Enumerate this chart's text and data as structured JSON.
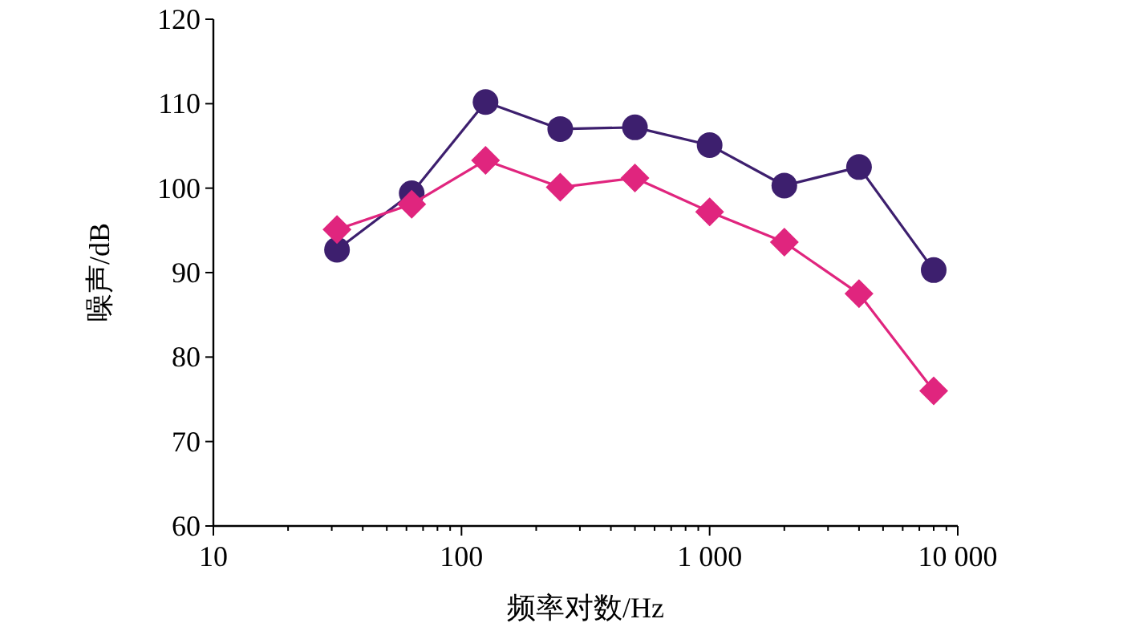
{
  "chart_data": {
    "type": "line",
    "xlabel": "频率对数/Hz",
    "ylabel": "噪声/dB",
    "log": "x",
    "xlim": [
      10,
      10000
    ],
    "xticks": [
      10,
      100,
      {
        "value": 1000,
        "label": "1 000"
      },
      {
        "value": 10000,
        "label": "10 000"
      }
    ],
    "ylim": [
      60,
      120
    ],
    "yticks": [
      60,
      70,
      80,
      90,
      100,
      110,
      120
    ],
    "grid": false,
    "x": [
      31.5,
      63,
      125,
      250,
      500,
      1000,
      2000,
      4000,
      8000
    ],
    "series": [
      {
        "color": "#3d1f6e",
        "marker": "circle",
        "values": [
          92.7,
          99.4,
          110.2,
          107.0,
          107.2,
          105.1,
          100.3,
          102.5,
          90.3
        ]
      },
      {
        "color": "#e0257e",
        "marker": "diamond",
        "values": [
          95.1,
          98.1,
          103.3,
          100.1,
          101.2,
          97.2,
          93.6,
          87.5,
          76.0
        ]
      }
    ]
  }
}
